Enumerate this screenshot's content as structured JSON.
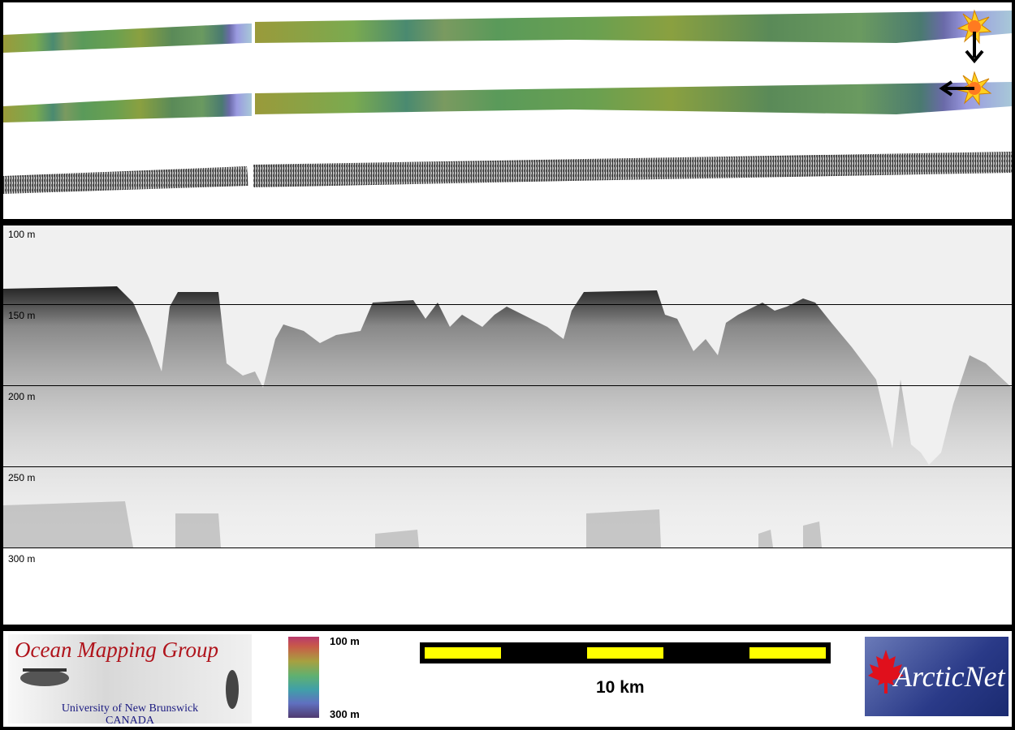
{
  "profile": {
    "depth_labels": [
      "100 m",
      "150 m",
      "200 m",
      "250 m",
      "300 m"
    ]
  },
  "footer": {
    "omg_logo": {
      "title": "Ocean Mapping Group",
      "line1": "University of New Brunswick",
      "line2": "CANADA"
    },
    "colorbar": {
      "top_label": "100 m",
      "bottom_label": "300 m"
    },
    "scalebar": {
      "label": "10 km"
    },
    "arcticnet_logo": {
      "text": "ArcticNet"
    }
  },
  "colors": {
    "scale_yellow": "#ffff00",
    "omg_red": "#b0141c",
    "omg_blue": "#1a1a80",
    "arcticnet_blue": "#2a3a88"
  },
  "icons": [
    "sun-marker-icon",
    "arrow-down-icon",
    "arrow-left-icon",
    "maple-leaf-icon"
  ]
}
